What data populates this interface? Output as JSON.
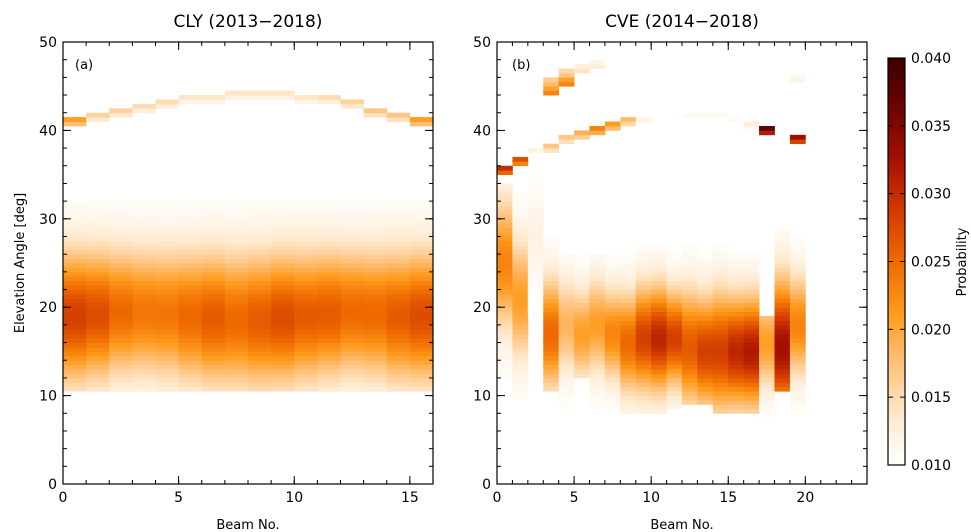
{
  "chart_data": [
    {
      "type": "heatmap",
      "panel_label": "(a)",
      "title": "CLY (2013−2018)",
      "xlabel": "Beam No.",
      "ylabel": "Elevation Angle [deg]",
      "xlim": [
        0,
        16
      ],
      "ylim": [
        0,
        50
      ],
      "xticks": [
        0,
        5,
        10,
        15
      ],
      "yticks": [
        0,
        10,
        20,
        30,
        40,
        50
      ],
      "beams": [
        0,
        1,
        2,
        3,
        4,
        5,
        6,
        7,
        8,
        9,
        10,
        11,
        12,
        13,
        14,
        15
      ],
      "main_band": {
        "center_deg": [
          19.0,
          19.2,
          19.5,
          19.5,
          19.3,
          19.0,
          18.8,
          18.6,
          18.6,
          18.8,
          19.0,
          19.3,
          19.5,
          19.3,
          19.0,
          19.0
        ],
        "peak_probability": [
          0.027,
          0.026,
          0.024,
          0.023,
          0.023,
          0.024,
          0.025,
          0.024,
          0.025,
          0.026,
          0.025,
          0.025,
          0.024,
          0.024,
          0.025,
          0.026
        ],
        "extent_deg": [
          10.5,
          32.0
        ]
      },
      "arc": {
        "elevation_deg": [
          40.8,
          41.6,
          42.2,
          42.7,
          43.1,
          43.5,
          43.7,
          43.9,
          43.9,
          43.8,
          43.6,
          43.3,
          42.8,
          42.2,
          41.5,
          40.8
        ],
        "probability": [
          0.021,
          0.016,
          0.016,
          0.015,
          0.015,
          0.014,
          0.014,
          0.014,
          0.014,
          0.014,
          0.014,
          0.015,
          0.016,
          0.017,
          0.017,
          0.021
        ]
      }
    },
    {
      "type": "heatmap",
      "panel_label": "(b)",
      "title": "CVE (2014−2018)",
      "xlabel": "Beam No.",
      "xlim": [
        0,
        24
      ],
      "ylim": [
        0,
        50
      ],
      "xticks": [
        0,
        5,
        10,
        15,
        20
      ],
      "yticks": [
        0,
        10,
        20,
        30,
        40,
        50
      ],
      "beams": [
        0,
        1,
        2,
        3,
        4,
        5,
        6,
        7,
        8,
        9,
        10,
        11,
        12,
        13,
        14,
        15,
        16,
        17,
        18,
        19
      ],
      "main_band": {
        "center_deg": [
          25.0,
          21.0,
          28.0,
          17.0,
          18.0,
          17.0,
          18.0,
          17.0,
          16.0,
          16.5,
          16.5,
          16.5,
          15.5,
          15.0,
          15.0,
          15.0,
          15.0,
          16.0,
          15.5,
          18.0
        ],
        "peak_probability": [
          0.022,
          0.02,
          0.012,
          0.024,
          0.018,
          0.02,
          0.02,
          0.022,
          0.024,
          0.027,
          0.029,
          0.027,
          0.025,
          0.027,
          0.027,
          0.029,
          0.03,
          0.02,
          0.031,
          0.022
        ],
        "low_deg": [
          12.0,
          9.5,
          19.0,
          10.5,
          8.5,
          12.0,
          8.5,
          8.0,
          8.0,
          8.0,
          8.0,
          8.5,
          9.0,
          9.0,
          8.0,
          8.0,
          8.0,
          7.0,
          10.5,
          8.0
        ],
        "high_deg": [
          34.0,
          33.0,
          36.0,
          28.0,
          26.0,
          26.0,
          26.0,
          26.0,
          26.0,
          27.0,
          27.0,
          26.0,
          27.0,
          26.0,
          27.0,
          26.0,
          26.0,
          19.0,
          29.0,
          28.0
        ]
      },
      "arc": {
        "elevation_deg": [
          35.5,
          36.3,
          37.3,
          38.0,
          38.8,
          39.5,
          40.2,
          40.6,
          41.0,
          41.2,
          41.4,
          41.4,
          41.5,
          41.4,
          41.3,
          41.0,
          40.7,
          40.2,
          39.5,
          38.8
        ],
        "probability": [
          0.03,
          0.027,
          0.012,
          0.017,
          0.017,
          0.019,
          0.023,
          0.021,
          0.018,
          0.012,
          0.01,
          0.01,
          0.011,
          0.011,
          0.011,
          0.011,
          0.013,
          0.037,
          0.01,
          0.033
        ]
      },
      "extra_cells": [
        {
          "beam": 3,
          "elevation_deg": 44.5,
          "probability": 0.023
        },
        {
          "beam": 3,
          "elevation_deg": 45.5,
          "probability": 0.018
        },
        {
          "beam": 4,
          "elevation_deg": 45.5,
          "probability": 0.023
        },
        {
          "beam": 4,
          "elevation_deg": 46.3,
          "probability": 0.017
        },
        {
          "beam": 5,
          "elevation_deg": 47.0,
          "probability": 0.014
        },
        {
          "beam": 6,
          "elevation_deg": 47.5,
          "probability": 0.013
        },
        {
          "beam": 18,
          "elevation_deg": 46.7,
          "probability": 0.01
        },
        {
          "beam": 19,
          "elevation_deg": 46.0,
          "probability": 0.012
        }
      ]
    }
  ],
  "colorbar": {
    "label": "Probability",
    "min": 0.01,
    "max": 0.04,
    "ticks": [
      "0.010",
      "0.015",
      "0.020",
      "0.025",
      "0.030",
      "0.035",
      "0.040"
    ],
    "tick_values": [
      0.01,
      0.015,
      0.02,
      0.025,
      0.03,
      0.035,
      0.04
    ],
    "colormap_stops": [
      "#ffffff",
      "#ffe8cc",
      "#ffc17a",
      "#ff9a1c",
      "#ee6a00",
      "#d23a00",
      "#a51000",
      "#6e0400",
      "#3a0000"
    ]
  }
}
